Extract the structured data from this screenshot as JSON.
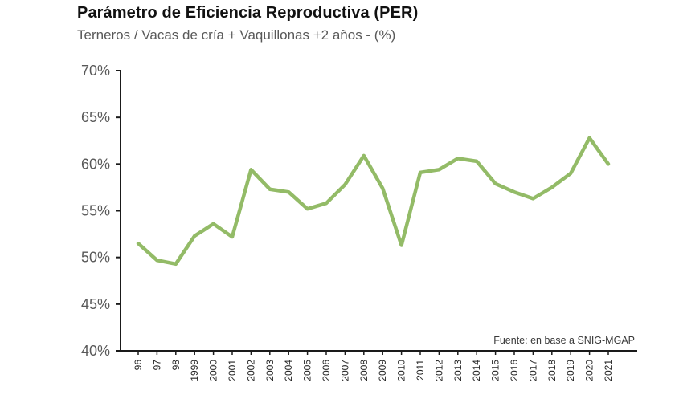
{
  "chart_data": {
    "type": "line",
    "title": "Parámetro de Eficiencia Reproductiva (PER)",
    "subtitle": "Terneros / Vacas de cría + Vaquillonas +2 años - (%)",
    "source": "Fuente: en base a SNIG-MGAP",
    "categories": [
      "96",
      "97",
      "98",
      "1999",
      "2000",
      "2001",
      "2002",
      "2003",
      "2004",
      "2005",
      "2006",
      "2007",
      "2008",
      "2009",
      "2010",
      "2011",
      "2012",
      "2013",
      "2014",
      "2015",
      "2016",
      "2017",
      "2018",
      "2019",
      "2020",
      "2021"
    ],
    "series": [
      {
        "name": "PER",
        "values": [
          51.5,
          49.7,
          49.3,
          52.3,
          53.6,
          52.2,
          59.4,
          57.3,
          57.0,
          55.2,
          55.8,
          57.8,
          60.9,
          57.4,
          51.3,
          59.1,
          59.4,
          60.6,
          60.3,
          57.9,
          57.0,
          56.3,
          57.5,
          59.0,
          62.8,
          60.0
        ]
      }
    ],
    "ylim": [
      40,
      70
    ],
    "ytick_step": 5,
    "ytick_suffix": "%",
    "grid": "off",
    "legend": "none",
    "line_color": "#93bb67",
    "axis_color": "#1a1a1a",
    "ylabel_color": "#595959",
    "xlabel_color": "#262626"
  }
}
